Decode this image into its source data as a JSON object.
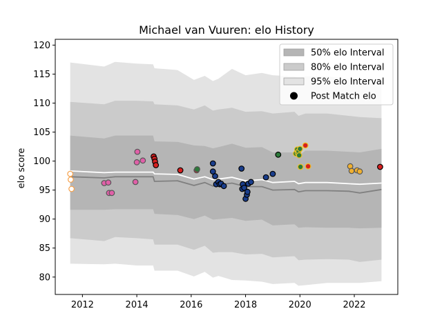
{
  "chart_data": {
    "type": "line",
    "title": "Michael van Vuuren: elo History",
    "xlabel": "",
    "ylabel": "elo score",
    "xlim": [
      2011.0,
      2023.6
    ],
    "ylim": [
      77,
      121
    ],
    "xticks": [
      2012,
      2014,
      2016,
      2018,
      2020,
      2022
    ],
    "yticks": [
      80,
      85,
      90,
      95,
      100,
      105,
      110,
      115,
      120
    ],
    "grid": false,
    "legend_position": "top-right",
    "colors": {
      "band95": "#e3e3e3",
      "band80": "#cbcbcb",
      "band50": "#b5b5b5",
      "median_line": "#808080",
      "mean_line": "#ffffff",
      "legend_marker": "#000000"
    },
    "legend": [
      {
        "label": "50% elo Interval",
        "kind": "band",
        "color": "#b5b5b5"
      },
      {
        "label": "80% elo Interval",
        "kind": "band",
        "color": "#cbcbcb"
      },
      {
        "label": "95% elo Interval",
        "kind": "band",
        "color": "#e3e3e3"
      },
      {
        "label": "Post Match elo",
        "kind": "marker",
        "color": "#000000"
      }
    ],
    "bands": {
      "x": [
        2011.55,
        2012.8,
        2013.2,
        2014.0,
        2014.6,
        2014.65,
        2015.5,
        2016.1,
        2016.5,
        2016.8,
        2017.0,
        2017.5,
        2018.0,
        2018.6,
        2019.0,
        2019.8,
        2019.95,
        2020.2,
        2021.0,
        2021.8,
        2022.2,
        2023.0
      ],
      "p95_upper": [
        117.0,
        116.3,
        117.1,
        116.8,
        116.7,
        116.0,
        115.7,
        114.0,
        114.7,
        113.8,
        114.2,
        115.9,
        114.8,
        115.2,
        114.8,
        114.6,
        114.3,
        114.6,
        114.6,
        114.2,
        114.0,
        113.4
      ],
      "p80_upper": [
        110.2,
        109.8,
        110.4,
        110.4,
        110.3,
        109.8,
        109.6,
        108.9,
        109.6,
        108.7,
        108.9,
        109.2,
        108.5,
        108.6,
        108.2,
        108.5,
        107.8,
        108.2,
        108.2,
        107.8,
        107.6,
        107.4
      ],
      "p50_upper": [
        104.4,
        103.9,
        104.4,
        104.4,
        104.4,
        103.4,
        103.3,
        102.7,
        102.6,
        102.2,
        102.4,
        103.0,
        102.3,
        102.4,
        101.5,
        101.5,
        100.9,
        101.8,
        101.8,
        101.6,
        101.5,
        102.1
      ],
      "p50_lower": [
        91.6,
        91.6,
        91.7,
        91.7,
        91.7,
        90.9,
        90.7,
        90.0,
        90.6,
        89.9,
        90.0,
        90.2,
        89.7,
        89.9,
        88.9,
        89.1,
        88.5,
        88.6,
        88.5,
        88.5,
        88.4,
        88.5
      ],
      "p80_lower": [
        86.7,
        86.2,
        86.9,
        86.7,
        86.5,
        85.6,
        85.6,
        84.7,
        85.4,
        84.2,
        84.3,
        84.3,
        83.9,
        84.0,
        83.4,
        83.6,
        82.9,
        83.0,
        83.1,
        83.0,
        82.6,
        83.0
      ],
      "p95_lower": [
        82.3,
        82.2,
        82.3,
        82.0,
        82.0,
        81.1,
        81.1,
        80.1,
        80.9,
        79.9,
        80.2,
        79.5,
        79.4,
        79.2,
        78.8,
        79.0,
        78.5,
        78.6,
        79.0,
        79.0,
        79.0,
        79.3
      ]
    },
    "lines": [
      {
        "role": "median",
        "x": [
          2011.55,
          2012.8,
          2013.2,
          2014.0,
          2014.6,
          2014.65,
          2015.5,
          2016.1,
          2016.5,
          2016.8,
          2017.0,
          2017.5,
          2018.0,
          2018.6,
          2019.0,
          2019.8,
          2019.95,
          2020.2,
          2021.0,
          2021.8,
          2022.2,
          2023.0
        ],
        "y": [
          97.3,
          97.1,
          97.3,
          97.3,
          97.3,
          96.5,
          96.6,
          95.8,
          96.3,
          95.7,
          95.9,
          96.2,
          95.6,
          95.6,
          95.0,
          95.1,
          94.7,
          94.9,
          94.9,
          94.8,
          94.5,
          95.1
        ]
      },
      {
        "role": "mean",
        "x": [
          2011.55,
          2012.8,
          2013.2,
          2014.0,
          2014.6,
          2014.65,
          2015.5,
          2016.1,
          2016.5,
          2016.8,
          2017.0,
          2017.5,
          2018.0,
          2018.6,
          2019.0,
          2019.8,
          2019.95,
          2020.2,
          2021.0,
          2021.8,
          2022.2,
          2023.0
        ],
        "y": [
          98.3,
          98.0,
          98.1,
          98.1,
          98.1,
          97.8,
          97.7,
          96.9,
          97.3,
          96.8,
          96.9,
          97.2,
          96.6,
          96.8,
          96.3,
          96.5,
          96.1,
          96.3,
          96.3,
          96.1,
          96.0,
          96.2
        ]
      }
    ],
    "points": [
      {
        "x": 2011.55,
        "y": 97.8,
        "fill": "#ffffff",
        "edge": "#f5a04a"
      },
      {
        "x": 2011.57,
        "y": 96.8,
        "fill": "#ffffff",
        "edge": "#f5a04a"
      },
      {
        "x": 2011.6,
        "y": 95.2,
        "fill": "#ffffff",
        "edge": "#f5a04a"
      },
      {
        "x": 2012.8,
        "y": 96.2,
        "fill": "#e060a8",
        "edge": "#555555"
      },
      {
        "x": 2012.95,
        "y": 96.3,
        "fill": "#e060a8",
        "edge": "#555555"
      },
      {
        "x": 2012.98,
        "y": 94.5,
        "fill": "#e060a8",
        "edge": "#555555"
      },
      {
        "x": 2013.08,
        "y": 94.5,
        "fill": "#e060a8",
        "edge": "#555555"
      },
      {
        "x": 2013.95,
        "y": 96.4,
        "fill": "#e060a8",
        "edge": "#555555"
      },
      {
        "x": 2014.0,
        "y": 99.8,
        "fill": "#e060a8",
        "edge": "#555555"
      },
      {
        "x": 2014.02,
        "y": 101.6,
        "fill": "#e060a8",
        "edge": "#555555"
      },
      {
        "x": 2014.22,
        "y": 100.1,
        "fill": "#e060a8",
        "edge": "#555555"
      },
      {
        "x": 2014.62,
        "y": 100.8,
        "fill": "#d62020",
        "edge": "#000000"
      },
      {
        "x": 2014.65,
        "y": 100.4,
        "fill": "#d62020",
        "edge": "#000000"
      },
      {
        "x": 2014.67,
        "y": 99.9,
        "fill": "#d62020",
        "edge": "#000000"
      },
      {
        "x": 2014.7,
        "y": 99.3,
        "fill": "#d62020",
        "edge": "#000000"
      },
      {
        "x": 2015.6,
        "y": 98.4,
        "fill": "#d62020",
        "edge": "#000000"
      },
      {
        "x": 2016.2,
        "y": 98.4,
        "fill": "#d62020",
        "edge": "#555555"
      },
      {
        "x": 2016.22,
        "y": 98.6,
        "fill": "#2d7a3a",
        "edge": "#555555"
      },
      {
        "x": 2016.8,
        "y": 99.6,
        "fill": "#1a3e8c",
        "edge": "#000000"
      },
      {
        "x": 2016.8,
        "y": 98.2,
        "fill": "#1a3e8c",
        "edge": "#000000"
      },
      {
        "x": 2016.88,
        "y": 97.4,
        "fill": "#1a3e8c",
        "edge": "#000000"
      },
      {
        "x": 2016.92,
        "y": 96.0,
        "fill": "#1a3e8c",
        "edge": "#000000"
      },
      {
        "x": 2017.0,
        "y": 96.4,
        "fill": "#1a3e8c",
        "edge": "#000000"
      },
      {
        "x": 2017.05,
        "y": 96.0,
        "fill": "#1a3e8c",
        "edge": "#000000"
      },
      {
        "x": 2017.1,
        "y": 96.1,
        "fill": "#1a3e8c",
        "edge": "#000000"
      },
      {
        "x": 2017.2,
        "y": 95.7,
        "fill": "#1a3e8c",
        "edge": "#000000"
      },
      {
        "x": 2017.85,
        "y": 98.7,
        "fill": "#1a3e8c",
        "edge": "#000000"
      },
      {
        "x": 2017.88,
        "y": 95.2,
        "fill": "#1a3e8c",
        "edge": "#000000"
      },
      {
        "x": 2017.9,
        "y": 96.0,
        "fill": "#1a3e8c",
        "edge": "#000000"
      },
      {
        "x": 2017.95,
        "y": 95.4,
        "fill": "#1a3e8c",
        "edge": "#000000"
      },
      {
        "x": 2018.0,
        "y": 93.5,
        "fill": "#1a3e8c",
        "edge": "#000000"
      },
      {
        "x": 2018.05,
        "y": 94.2,
        "fill": "#1a3e8c",
        "edge": "#000000"
      },
      {
        "x": 2018.07,
        "y": 94.7,
        "fill": "#1a3e8c",
        "edge": "#000000"
      },
      {
        "x": 2018.1,
        "y": 96.1,
        "fill": "#1a3e8c",
        "edge": "#000000"
      },
      {
        "x": 2018.2,
        "y": 96.4,
        "fill": "#1a3e8c",
        "edge": "#000000"
      },
      {
        "x": 2018.75,
        "y": 97.2,
        "fill": "#1a3e8c",
        "edge": "#000000"
      },
      {
        "x": 2019.0,
        "y": 97.8,
        "fill": "#1a3e8c",
        "edge": "#000000"
      },
      {
        "x": 2019.2,
        "y": 101.1,
        "fill": "#2d7a3a",
        "edge": "#000000"
      },
      {
        "x": 2019.85,
        "y": 101.3,
        "fill": "#2d7a3a",
        "edge": "#f0c020"
      },
      {
        "x": 2019.9,
        "y": 102.0,
        "fill": "#2d7a3a",
        "edge": "#f0c020"
      },
      {
        "x": 2019.92,
        "y": 101.4,
        "fill": "#2d7a3a",
        "edge": "#f0c020"
      },
      {
        "x": 2019.95,
        "y": 101.7,
        "fill": "#2d7a3a",
        "edge": "#f0c020"
      },
      {
        "x": 2019.97,
        "y": 101.0,
        "fill": "#2d7a3a",
        "edge": "#f0c020"
      },
      {
        "x": 2020.0,
        "y": 102.1,
        "fill": "#2d7a3a",
        "edge": "#f0c020"
      },
      {
        "x": 2020.02,
        "y": 99.0,
        "fill": "#2d7a3a",
        "edge": "#f0c020"
      },
      {
        "x": 2020.2,
        "y": 102.7,
        "fill": "#d62020",
        "edge": "#f0c020"
      },
      {
        "x": 2020.3,
        "y": 99.1,
        "fill": "#d62020",
        "edge": "#f0c020"
      },
      {
        "x": 2021.85,
        "y": 99.1,
        "fill": "#f0b030",
        "edge": "#555555"
      },
      {
        "x": 2021.9,
        "y": 98.3,
        "fill": "#f0b030",
        "edge": "#555555"
      },
      {
        "x": 2022.1,
        "y": 98.4,
        "fill": "#f0b030",
        "edge": "#555555"
      },
      {
        "x": 2022.2,
        "y": 98.2,
        "fill": "#f0b030",
        "edge": "#555555"
      },
      {
        "x": 2022.95,
        "y": 99.0,
        "fill": "#d62020",
        "edge": "#000000"
      }
    ]
  }
}
